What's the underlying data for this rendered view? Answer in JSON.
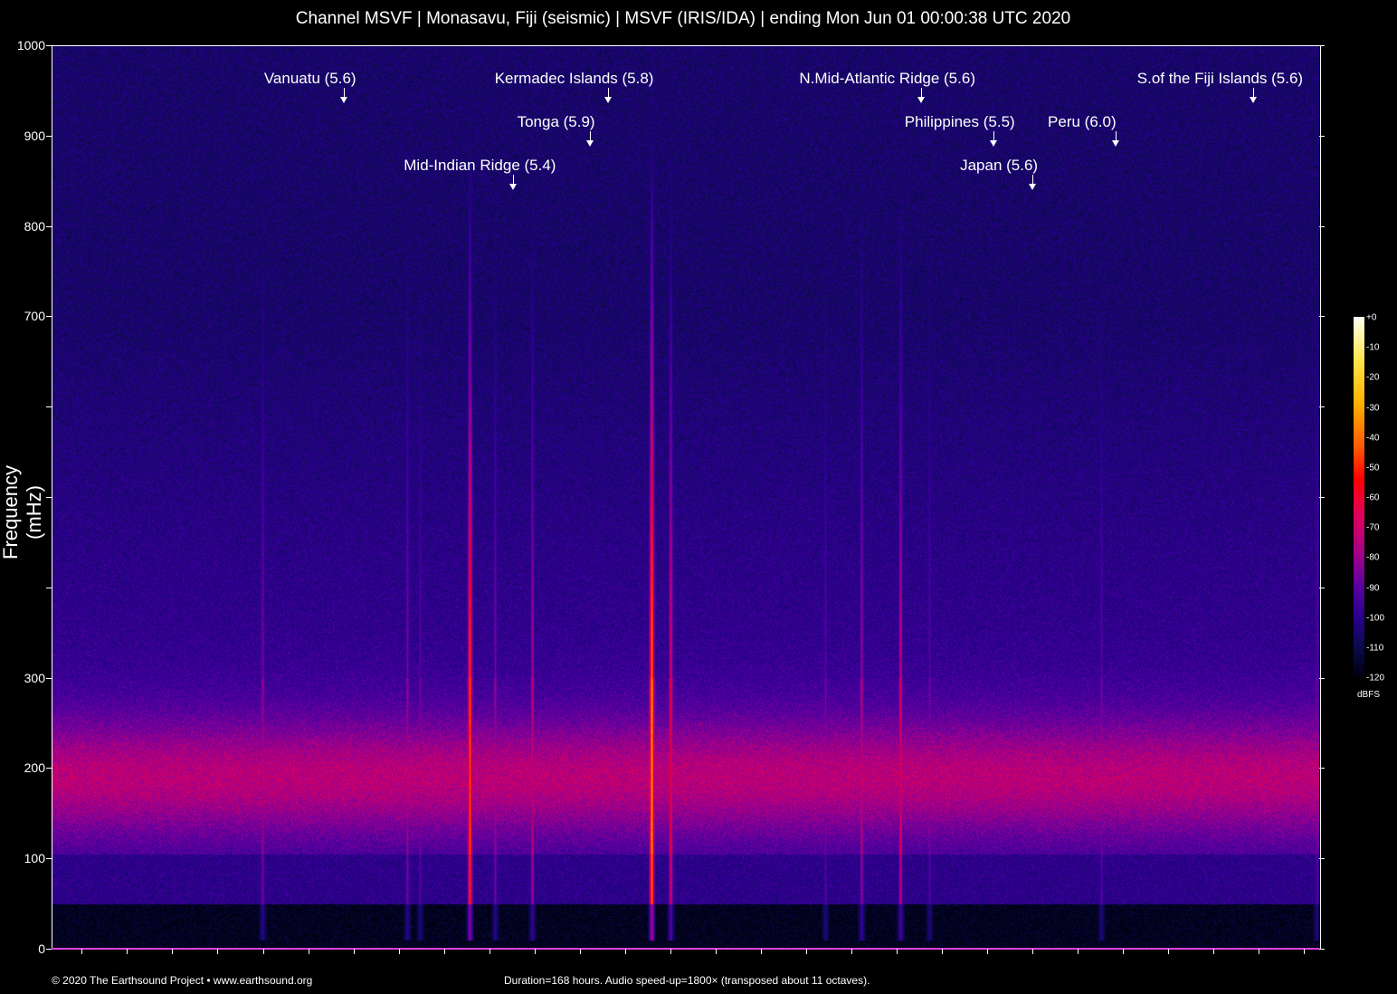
{
  "title": "Channel MSVF | Monasavu, Fiji (seismic) | MSVF (IRIS/IDA) | ending Mon Jun 01 00:00:38 UTC 2020",
  "chart_data": {
    "type": "heatmap",
    "title": "Channel MSVF | Monasavu, Fiji (seismic) | MSVF (IRIS/IDA) | ending Mon Jun 01 00:00:38 UTC 2020",
    "xlabel": "",
    "ylabel": "Frequency (mHz)",
    "ylim": [
      0,
      1000
    ],
    "y_tick_labels": [
      "0",
      "100",
      "200",
      "300",
      "700",
      "800",
      "900",
      "1000"
    ],
    "y_ticks": [
      0,
      100,
      200,
      300,
      400,
      500,
      600,
      700,
      800,
      900,
      1000
    ],
    "xlim_hours": [
      0,
      168
    ],
    "colorbar": {
      "label": "dBFS",
      "range": [
        -120,
        0
      ],
      "tick_labels": [
        "+0",
        "-10",
        "-20",
        "-30",
        "-40",
        "-50",
        "-60",
        "-70",
        "-80",
        "-90",
        "-100",
        "-110",
        "-120"
      ],
      "colormap": [
        "#000010",
        "#0c0a50",
        "#2a0090",
        "#5a00a0",
        "#a0008a",
        "#e0005a",
        "#ff0000",
        "#ff5a00",
        "#ffb000",
        "#ffe64a",
        "#fffff4"
      ]
    },
    "events": [
      {
        "label": "Vanuatu (5.6)",
        "time_hours": 38.7
      },
      {
        "label": "Kermadec Islands (5.8)",
        "time_hours": 73.7
      },
      {
        "label": "Tonga (5.9)",
        "time_hours": 71.3
      },
      {
        "label": "Mid-Indian Ridge (5.4)",
        "time_hours": 61.2
      },
      {
        "label": "N.Mid-Atlantic Ridge (5.6)",
        "time_hours": 115.2
      },
      {
        "label": "Philippines (5.5)",
        "time_hours": 124.8
      },
      {
        "label": "Peru (6.0)",
        "time_hours": 141.0
      },
      {
        "label": "Japan (5.6)",
        "time_hours": 130.0
      },
      {
        "label": "S.of the Fiji Islands (5.6)",
        "time_hours": 159.3
      }
    ]
  },
  "footer": {
    "copyright": "© 2020 The Earthsound Project • www.earthsound.org",
    "info": "Duration=168 hours. Audio speed-up=1800× (transposed about 11 octaves)."
  }
}
